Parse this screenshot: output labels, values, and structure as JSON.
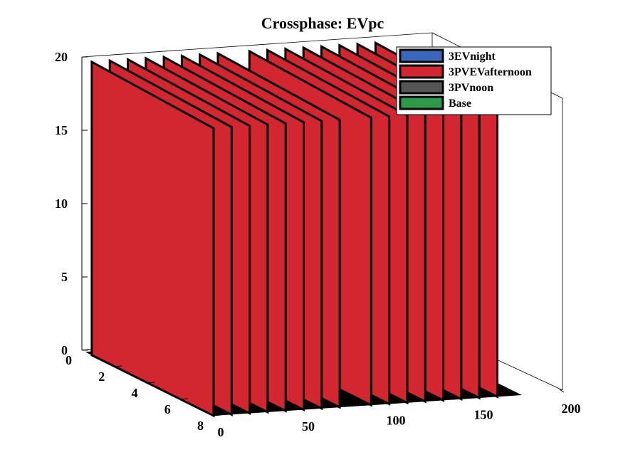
{
  "chart_data": {
    "type": "bar3d",
    "title": "Crossphase: EVpc",
    "x_axis": {
      "ticks": [
        0,
        50,
        100,
        150,
        200
      ],
      "range": [
        0,
        200
      ]
    },
    "y_axis": {
      "ticks": [
        0,
        2,
        4,
        6,
        8
      ],
      "range": [
        0,
        8
      ]
    },
    "z_axis": {
      "ticks": [
        0,
        5,
        10,
        15,
        20
      ],
      "range": [
        0,
        20
      ]
    },
    "legend": {
      "position": "top-right",
      "entries": [
        {
          "name": "3EVnight",
          "color": "#3a67b7"
        },
        {
          "name": "3PVEVafternoon",
          "color": "#d22630"
        },
        {
          "name": "3PVnoon",
          "color": "#555555"
        },
        {
          "name": "Base",
          "color": "#2e9a4a"
        }
      ]
    },
    "series": [
      {
        "name": "3PVEVafternoon",
        "color": "#d22630",
        "description": "bars at height 20 in two groups along x, at each y row",
        "groups": [
          {
            "x_start": 0,
            "x_end": 72,
            "rows": [
              1,
              2,
              3,
              4,
              5,
              6,
              7,
              8
            ],
            "value": 20
          },
          {
            "x_start": 90,
            "x_end": 162,
            "rows": [
              1,
              2,
              3,
              4,
              5,
              6,
              7,
              8
            ],
            "value": 20
          }
        ]
      }
    ],
    "floor_color": "#000000",
    "grid": false
  }
}
